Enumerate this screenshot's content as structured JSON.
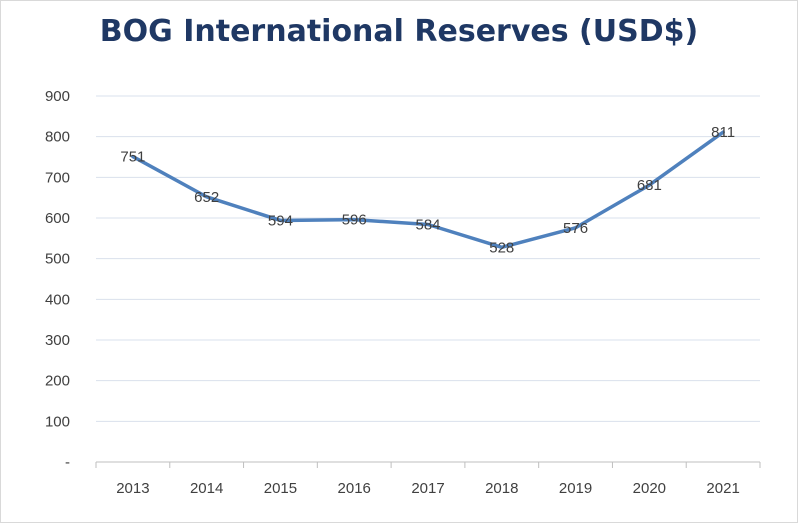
{
  "chart_data": {
    "type": "line",
    "title": "BOG International Reserves (USD$)",
    "xlabel": "",
    "ylabel": "",
    "categories": [
      "2013",
      "2014",
      "2015",
      "2016",
      "2017",
      "2018",
      "2019",
      "2020",
      "2021"
    ],
    "series": [
      {
        "values": [
          751,
          652,
          594,
          596,
          584,
          528,
          576,
          681,
          811
        ],
        "color": "#4f81bd"
      }
    ],
    "data_labels": [
      "751",
      "652",
      "594",
      "596",
      "584",
      "528",
      "576",
      "681",
      "811"
    ],
    "ylim": [
      0,
      900
    ],
    "y_ticks": [
      {
        "value": 0,
        "label": "-"
      },
      {
        "value": 100,
        "label": "100"
      },
      {
        "value": 200,
        "label": "200"
      },
      {
        "value": 300,
        "label": "300"
      },
      {
        "value": 400,
        "label": "400"
      },
      {
        "value": 500,
        "label": "500"
      },
      {
        "value": 600,
        "label": "600"
      },
      {
        "value": 700,
        "label": "700"
      },
      {
        "value": 800,
        "label": "800"
      },
      {
        "value": 900,
        "label": "900"
      }
    ],
    "grid": true,
    "legend": "none",
    "colors": {
      "title": "#1f3864",
      "gridline": "#d9e1ec",
      "axis": "#bfbfbf",
      "text": "#404040"
    }
  }
}
